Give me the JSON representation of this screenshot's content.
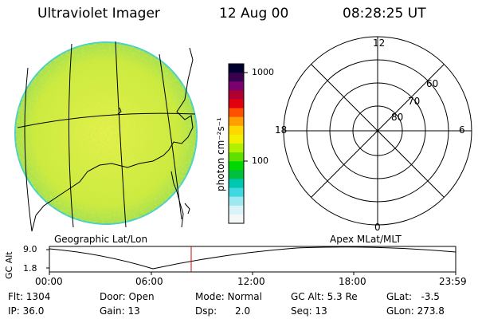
{
  "header": {
    "instrument": "Ultraviolet Imager",
    "date": "12 Aug 00",
    "time": "08:28:25 UT"
  },
  "image_panel": {
    "caption": "Geographic Lat/Lon"
  },
  "colorbar": {
    "unit_label": "photon cm⁻²s⁻¹",
    "ticks": [
      "1000",
      "100"
    ],
    "colors": [
      "#000030",
      "#3a0050",
      "#7a0070",
      "#b00030",
      "#e00010",
      "#ff5000",
      "#ffa000",
      "#ffd800",
      "#f0f000",
      "#b0f000",
      "#60e000",
      "#00d800",
      "#00c040",
      "#00c8b0",
      "#40d8e0",
      "#a0e8f0",
      "#d8f4f8",
      "#f4f8f8"
    ]
  },
  "polar_panel": {
    "caption": "Apex MLat/MLT",
    "mlt_labels": {
      "top": "12",
      "bottom": "0",
      "left": "18",
      "right": "6"
    },
    "lat_labels": [
      "60",
      "70",
      "80"
    ]
  },
  "altitude_panel": {
    "axis_label": "GC Alt",
    "y_ticks": [
      "9.0",
      "1.8"
    ],
    "x_ticks": [
      "00:00",
      "06:00",
      "12:00",
      "18:00",
      "23:59"
    ],
    "current_marker_time": "08:28"
  },
  "info": {
    "flt": "Flt: 1304",
    "ip": "IP: 36.0",
    "door": "Door: Open",
    "gain": "Gain: 13",
    "mode": "Mode: Normal",
    "dsp": "Dsp:      2.0",
    "gc_alt": "GC Alt: 5.3 Re",
    "seq": "Seq: 13",
    "glat": "GLat:   -3.5",
    "glon": "GLon: 273.8"
  },
  "colors": {
    "marker": "#e00000",
    "image_fill": "#d4ec3c",
    "image_edge": "#3ed0c0"
  }
}
